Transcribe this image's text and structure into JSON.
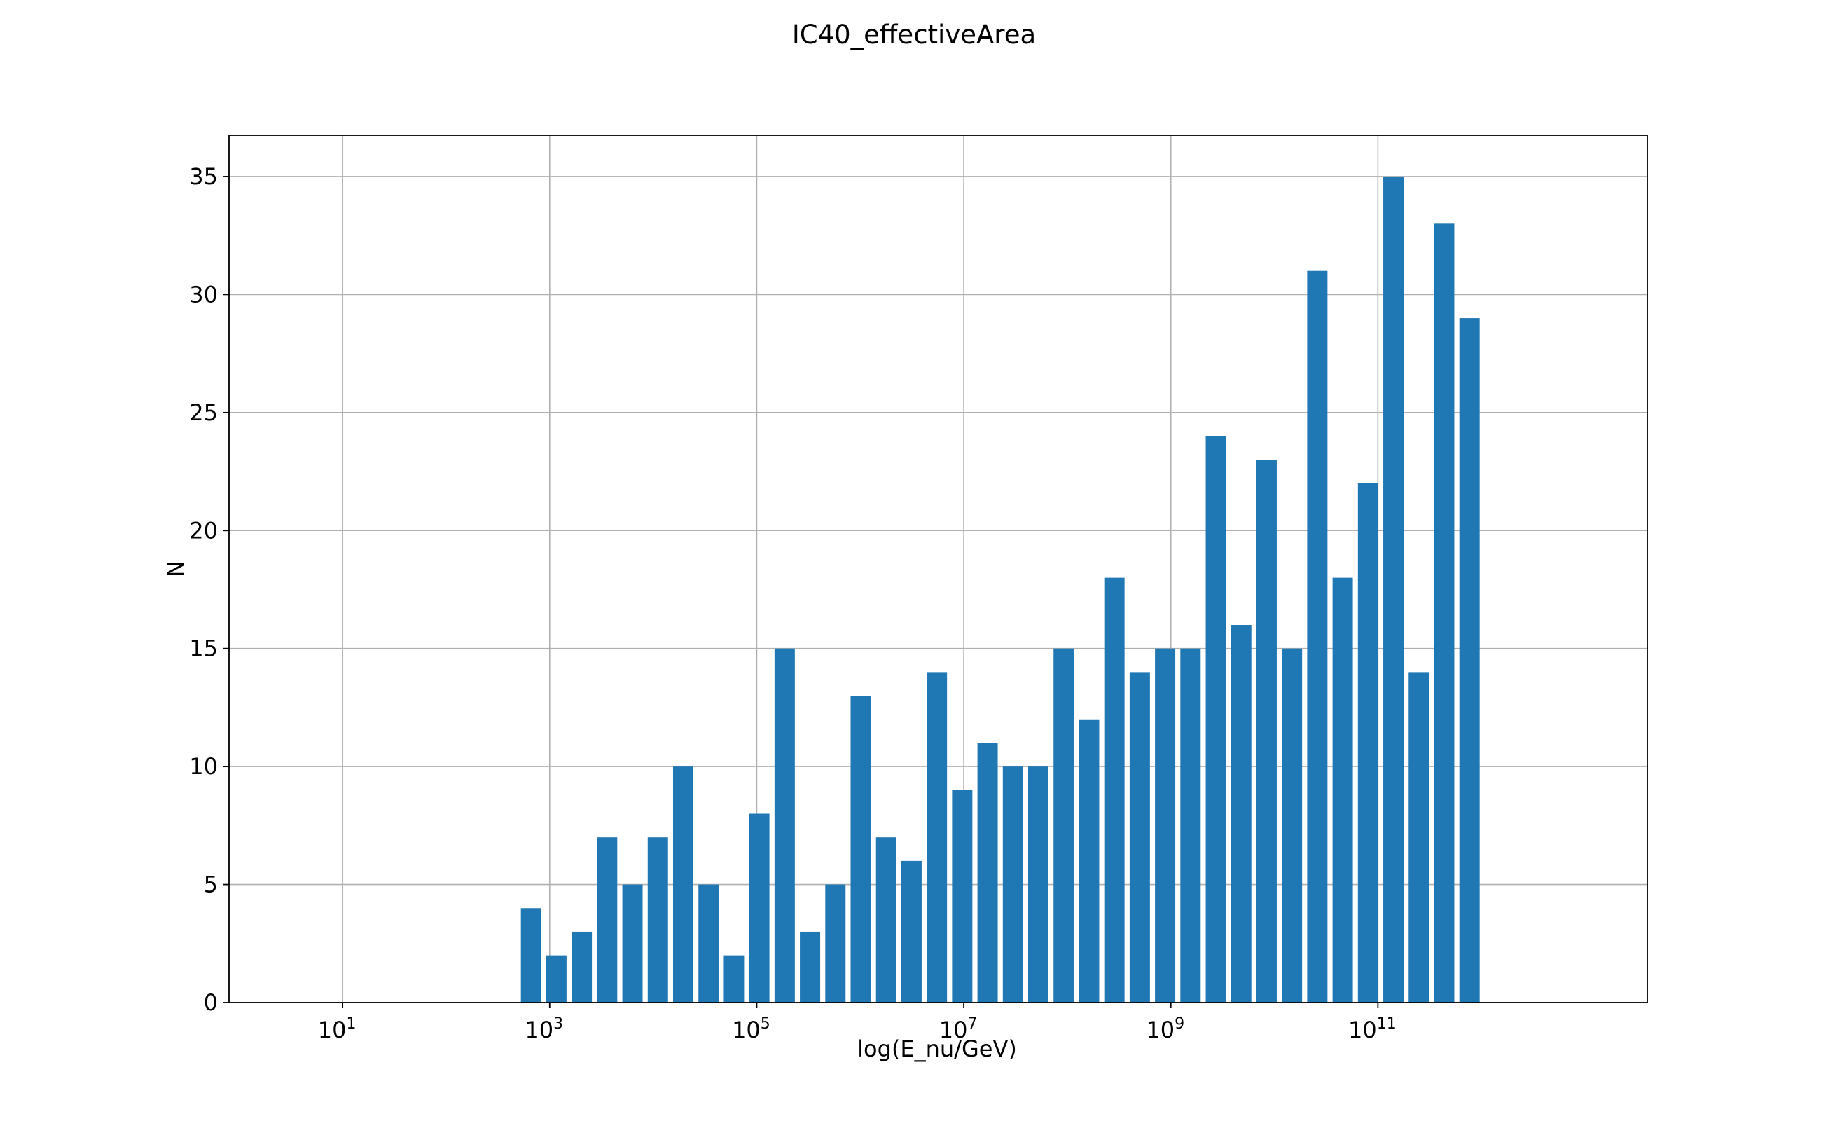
{
  "chart_data": {
    "type": "bar",
    "title": "IC40_effectiveArea",
    "xlabel": "log(E_nu/GeV)",
    "ylabel": "N",
    "x_scale": "log",
    "xlim": [
      0.8,
      40000000000000
    ],
    "ylim": [
      0,
      36.75
    ],
    "x_ticks": [
      {
        "value": 10,
        "base": "10",
        "exp": "1"
      },
      {
        "value": 1000,
        "base": "10",
        "exp": "3"
      },
      {
        "value": 100000,
        "base": "10",
        "exp": "5"
      },
      {
        "value": 10000000,
        "base": "10",
        "exp": "7"
      },
      {
        "value": 1000000000,
        "base": "10",
        "exp": "9"
      },
      {
        "value": 100000000000,
        "base": "10",
        "exp": "11"
      }
    ],
    "y_ticks": [
      0,
      5,
      10,
      15,
      20,
      25,
      30,
      35
    ],
    "grid": true,
    "legend": "none",
    "bar_color": "#1f77b4",
    "bin_log10_start": 2.82,
    "bin_log10_step": 0.245,
    "values": [
      4,
      2,
      3,
      7,
      5,
      7,
      10,
      5,
      2,
      8,
      15,
      3,
      5,
      13,
      7,
      6,
      14,
      9,
      11,
      10,
      10,
      15,
      12,
      18,
      14,
      15,
      15,
      24,
      16,
      23,
      15,
      31,
      18,
      22,
      35,
      14,
      33,
      29
    ]
  }
}
